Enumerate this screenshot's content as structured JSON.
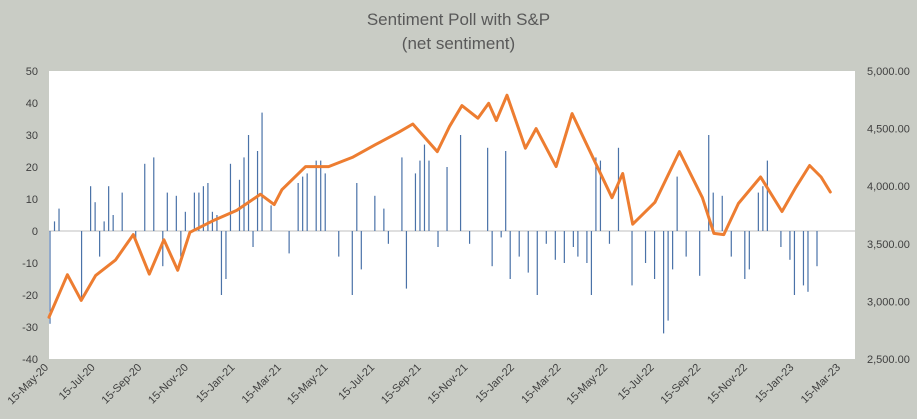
{
  "chart_data": {
    "type": "bar+line",
    "title": "Sentiment Poll with S&P",
    "subtitle": "(net sentiment)",
    "xlabel": "",
    "ylabel_left": "",
    "ylabel_right": "",
    "x_tick_labels": [
      "15-May-20",
      "15-Jul-20",
      "15-Sep-20",
      "15-Nov-20",
      "15-Jan-21",
      "15-Mar-21",
      "15-May-21",
      "15-Jul-21",
      "15-Sep-21",
      "15-Nov-21",
      "15-Jan-22",
      "15-Mar-22",
      "15-May-22",
      "15-Jul-22",
      "15-Sep-22",
      "15-Nov-22",
      "15-Jan-23",
      "15-Mar-23"
    ],
    "y_left": {
      "range": [
        -40,
        50
      ],
      "ticks": [
        "-40",
        "-30",
        "-20",
        "-10",
        "0",
        "10",
        "20",
        "30",
        "40",
        "50"
      ]
    },
    "y_right": {
      "range": [
        2500,
        5000
      ],
      "ticks": [
        "2,500.00",
        "3,000.00",
        "3,500.00",
        "4,000.00",
        "4,500.00",
        "5,000.00"
      ]
    },
    "grid": false,
    "legend": "none",
    "colors": {
      "bars": "#4a72a8",
      "line": "#ed7d31",
      "plot_bg": "#ffffff",
      "page_bg": "#c9ccc5"
    },
    "series": [
      {
        "name": "Net sentiment",
        "axis": "left",
        "kind": "bar",
        "values": [
          -29,
          3,
          7,
          0,
          0,
          0,
          0,
          -22,
          0,
          14,
          9,
          -8,
          3,
          14,
          5,
          0,
          12,
          0,
          0,
          -3,
          0,
          21,
          0,
          23,
          0,
          -11,
          12,
          0,
          11,
          -8,
          6,
          0,
          12,
          12,
          14,
          15,
          6,
          5,
          -20,
          -15,
          21,
          0,
          16,
          23,
          30,
          -5,
          25,
          37,
          0,
          8,
          0,
          0,
          0,
          -7,
          0,
          15,
          17,
          18,
          0,
          22,
          22,
          18,
          0,
          0,
          -8,
          0,
          0,
          -20,
          15,
          -12,
          0,
          0,
          11,
          0,
          7,
          -4,
          0,
          0,
          23,
          -18,
          0,
          18,
          22,
          27,
          22,
          0,
          -5,
          0,
          20,
          0,
          0,
          30,
          0,
          -4,
          0,
          0,
          0,
          26,
          -11,
          0,
          -2,
          25,
          -15,
          0,
          -8,
          0,
          -13,
          0,
          -20,
          0,
          -4,
          0,
          -9,
          0,
          -10,
          0,
          -5,
          -8,
          0,
          -10,
          -20,
          23,
          22,
          0,
          -4,
          0,
          26,
          0,
          0,
          -17,
          0,
          0,
          -10,
          0,
          -15,
          0,
          -32,
          -28,
          -12,
          17,
          0,
          -8,
          0,
          0,
          -14,
          0,
          30,
          12,
          0,
          11,
          0,
          -8,
          0,
          0,
          -15,
          -12,
          0,
          12,
          14,
          22,
          0,
          0,
          -5,
          0,
          -9,
          -20,
          0,
          -17,
          -19,
          0,
          -11
        ],
        "x_range": [
          "15-May-20",
          "15-Mar-23"
        ]
      },
      {
        "name": "S&P 500",
        "axis": "right",
        "kind": "line",
        "points": [
          {
            "date": "2020-05-15",
            "value": 2863
          },
          {
            "date": "2020-06-08",
            "value": 3232
          },
          {
            "date": "2020-06-26",
            "value": 3009
          },
          {
            "date": "2020-07-15",
            "value": 3226
          },
          {
            "date": "2020-08-10",
            "value": 3360
          },
          {
            "date": "2020-09-02",
            "value": 3580
          },
          {
            "date": "2020-09-23",
            "value": 3237
          },
          {
            "date": "2020-10-12",
            "value": 3535
          },
          {
            "date": "2020-10-30",
            "value": 3270
          },
          {
            "date": "2020-11-15",
            "value": 3600
          },
          {
            "date": "2020-12-15",
            "value": 3700
          },
          {
            "date": "2021-01-15",
            "value": 3790
          },
          {
            "date": "2021-02-15",
            "value": 3930
          },
          {
            "date": "2021-03-05",
            "value": 3840
          },
          {
            "date": "2021-03-15",
            "value": 3970
          },
          {
            "date": "2021-04-15",
            "value": 4170
          },
          {
            "date": "2021-05-15",
            "value": 4170
          },
          {
            "date": "2021-06-15",
            "value": 4250
          },
          {
            "date": "2021-07-15",
            "value": 4360
          },
          {
            "date": "2021-08-15",
            "value": 4470
          },
          {
            "date": "2021-09-02",
            "value": 4540
          },
          {
            "date": "2021-10-04",
            "value": 4300
          },
          {
            "date": "2021-10-20",
            "value": 4520
          },
          {
            "date": "2021-11-05",
            "value": 4700
          },
          {
            "date": "2021-11-26",
            "value": 4590
          },
          {
            "date": "2021-12-10",
            "value": 4720
          },
          {
            "date": "2021-12-20",
            "value": 4570
          },
          {
            "date": "2022-01-03",
            "value": 4790
          },
          {
            "date": "2022-01-27",
            "value": 4330
          },
          {
            "date": "2022-02-10",
            "value": 4500
          },
          {
            "date": "2022-03-08",
            "value": 4170
          },
          {
            "date": "2022-03-29",
            "value": 4630
          },
          {
            "date": "2022-04-15",
            "value": 4390
          },
          {
            "date": "2022-05-20",
            "value": 3900
          },
          {
            "date": "2022-06-03",
            "value": 4110
          },
          {
            "date": "2022-06-16",
            "value": 3670
          },
          {
            "date": "2022-07-15",
            "value": 3860
          },
          {
            "date": "2022-08-16",
            "value": 4300
          },
          {
            "date": "2022-09-15",
            "value": 3900
          },
          {
            "date": "2022-09-30",
            "value": 3590
          },
          {
            "date": "2022-10-13",
            "value": 3580
          },
          {
            "date": "2022-11-01",
            "value": 3850
          },
          {
            "date": "2022-11-30",
            "value": 4080
          },
          {
            "date": "2022-12-28",
            "value": 3780
          },
          {
            "date": "2023-01-15",
            "value": 3990
          },
          {
            "date": "2023-02-02",
            "value": 4180
          },
          {
            "date": "2023-02-17",
            "value": 4080
          },
          {
            "date": "2023-03-01",
            "value": 3950
          }
        ]
      }
    ]
  }
}
